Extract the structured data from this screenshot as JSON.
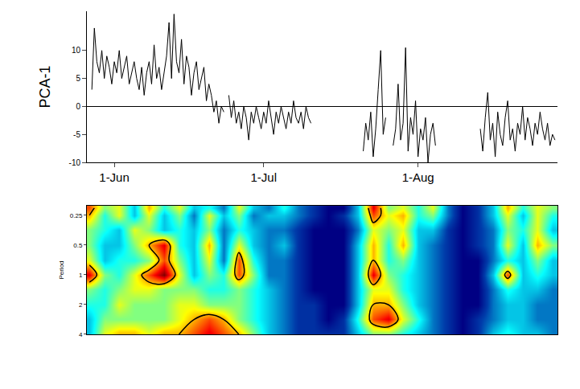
{
  "chart_data": [
    {
      "type": "line",
      "y_label": "PCA-1",
      "x": [
        -4.5,
        -4,
        -3.5,
        -3,
        -2.5,
        -2,
        -1.5,
        -1,
        -0.5,
        0,
        0.5,
        1,
        1.5,
        2,
        2.5,
        3,
        3.5,
        4,
        4.5,
        5,
        5.5,
        6,
        6.5,
        7,
        7.5,
        8,
        8.5,
        9,
        9.5,
        10,
        10.5,
        11,
        11.5,
        12,
        12.5,
        13,
        13.5,
        14,
        14.5,
        15,
        15.5,
        16,
        16.5,
        17,
        17.5,
        18,
        18.5,
        19,
        19.5,
        20,
        20.5,
        21,
        21.5,
        22,
        22.5,
        23,
        23.5,
        24,
        24.5,
        25,
        25.5,
        26,
        26.5,
        27,
        27.5,
        28,
        28.5,
        29,
        29.5,
        30,
        30.5,
        31,
        31.5,
        32,
        32.5,
        33,
        33.5,
        34,
        34.5,
        35,
        35.5,
        36,
        36.5,
        37,
        37.5,
        38,
        38.5,
        39,
        39.5,
        45,
        50,
        50.5,
        51,
        51.5,
        52,
        52.5,
        53,
        53.5,
        54,
        54.5,
        55,
        56,
        56.5,
        57,
        57.5,
        58,
        58.5,
        59,
        59.5,
        60,
        60.5,
        61,
        61.5,
        62,
        62.5,
        63,
        63.5,
        64,
        64.5,
        69,
        73.5,
        74,
        74.5,
        75,
        75.5,
        76,
        76.5,
        77,
        77.5,
        78,
        78.5,
        79,
        79.5,
        80,
        80.5,
        81,
        81.5,
        82,
        82.5,
        83,
        83.5,
        84,
        84.5,
        85,
        85.5,
        86,
        86.5,
        87,
        87.5,
        88,
        88.5
      ],
      "values": [
        3,
        14,
        8,
        6,
        10,
        5,
        9,
        7,
        4,
        8,
        6,
        10,
        5,
        7,
        9,
        4,
        6,
        8,
        5,
        3,
        7,
        2,
        6,
        8,
        4,
        11,
        5,
        7,
        3,
        6,
        9,
        15,
        5,
        16.5,
        8,
        6,
        12,
        4,
        9,
        7,
        2,
        6,
        8,
        3,
        5,
        7,
        1,
        4,
        2,
        -1,
        1,
        -3,
        0,
        -1,
        null,
        2,
        -2,
        1,
        -3,
        -1,
        -4,
        0,
        -2,
        -6,
        -1,
        -3,
        0,
        -2,
        -4,
        -1,
        -3,
        1,
        -2,
        -5,
        -1,
        -3,
        0,
        -2,
        -4,
        -1,
        -3,
        1,
        -2,
        -3,
        -1,
        -4,
        0,
        -2,
        -3,
        null,
        -8,
        -3,
        -6,
        -1,
        -9,
        -4,
        3,
        10,
        -5,
        -2,
        null,
        -7,
        -4,
        4,
        -6,
        -3,
        10.5,
        -8,
        -2,
        -5,
        1,
        -9,
        -4,
        -6,
        -2,
        -10,
        -5,
        -3,
        -7,
        null,
        -4,
        -8,
        -2,
        2.5,
        -6,
        -3,
        -9,
        -1,
        -5,
        -7,
        -2,
        1,
        -6,
        -4,
        -8,
        -3,
        -5,
        0,
        -6,
        -2,
        -4,
        -7,
        -3,
        -5,
        -1,
        -4,
        -6,
        -3,
        -7,
        -5,
        -6
      ],
      "color": "#000000",
      "xlim": [
        -5.5,
        89
      ],
      "xticks": [
        {
          "value": 0,
          "label": "1-Jun"
        },
        {
          "value": 30,
          "label": "1-Jul"
        },
        {
          "value": 61,
          "label": "1-Aug"
        }
      ],
      "ylim": [
        -10,
        17
      ],
      "yticks": [
        -10,
        -5,
        0,
        5,
        10
      ],
      "grid": false
    },
    {
      "type": "heatmap",
      "y_label": "Period",
      "log": "y",
      "x": [
        -5,
        -2,
        1,
        4,
        7,
        10,
        13,
        16,
        19,
        22,
        25,
        28,
        31,
        34,
        37,
        40,
        43,
        46,
        49,
        52,
        55,
        58,
        61,
        64,
        67,
        70,
        73,
        76,
        79,
        82,
        85,
        88
      ],
      "y": [
        0.21,
        0.25,
        0.35,
        0.5,
        0.71,
        1,
        1.41,
        2,
        2.83,
        4
      ],
      "z": [
        [
          8,
          5,
          6,
          3,
          7,
          4,
          6,
          3,
          4,
          2,
          6,
          3,
          2,
          4,
          2,
          1,
          0,
          0,
          3,
          9,
          5,
          6,
          4,
          6,
          2,
          0,
          1,
          3,
          7,
          4,
          6,
          5
        ],
        [
          7,
          4,
          6,
          3,
          6,
          3,
          5,
          2,
          6,
          3,
          5,
          2,
          3,
          3,
          2,
          1,
          0,
          1,
          3,
          8,
          6,
          7,
          4,
          5,
          2,
          0,
          1,
          3,
          6,
          3,
          6,
          4
        ],
        [
          5,
          4,
          3,
          6,
          5,
          3,
          4,
          3,
          5,
          2,
          4,
          3,
          2,
          2,
          1,
          0,
          0,
          0,
          2,
          6,
          5,
          6,
          3,
          3,
          1,
          0,
          1,
          2,
          5,
          4,
          6,
          3
        ],
        [
          5,
          3,
          3,
          5,
          7,
          9,
          4,
          3,
          7,
          2,
          6,
          3,
          2,
          3,
          1,
          0,
          0,
          0,
          3,
          7,
          4,
          7,
          3,
          2,
          1,
          0,
          1,
          2,
          6,
          3,
          7,
          5
        ],
        [
          6,
          3,
          4,
          4,
          5,
          8,
          5,
          3,
          6,
          2,
          8,
          4,
          2,
          2,
          1,
          0,
          0,
          0,
          3,
          7,
          4,
          5,
          3,
          2,
          1,
          0,
          0,
          2,
          4,
          3,
          5,
          3
        ],
        [
          9,
          5,
          4,
          6,
          8,
          10,
          6,
          3,
          5,
          4,
          8,
          5,
          2,
          2,
          1,
          0,
          0,
          0,
          3,
          9,
          5,
          4,
          3,
          2,
          1,
          0,
          0,
          3,
          8,
          3,
          4,
          3
        ],
        [
          5,
          4,
          5,
          6,
          6,
          5,
          5,
          5,
          4,
          4,
          5,
          4,
          3,
          2,
          1,
          0,
          0,
          0,
          3,
          6,
          6,
          4,
          3,
          2,
          1,
          0,
          0,
          2,
          4,
          3,
          3,
          2
        ],
        [
          4,
          4,
          6,
          5,
          5,
          5,
          6,
          6,
          5,
          5,
          5,
          4,
          3,
          2,
          1,
          1,
          0,
          0,
          3,
          7,
          7,
          5,
          3,
          2,
          1,
          0,
          0,
          2,
          3,
          3,
          2,
          2
        ],
        [
          3,
          5,
          5,
          5,
          5,
          5,
          6,
          7,
          8,
          7,
          5,
          4,
          3,
          2,
          1,
          1,
          0,
          1,
          4,
          8,
          9,
          6,
          4,
          2,
          1,
          0,
          1,
          2,
          3,
          3,
          2,
          2
        ],
        [
          3,
          6,
          7,
          7,
          6,
          7,
          7,
          8,
          9,
          8,
          7,
          5,
          3,
          2,
          1,
          1,
          1,
          1,
          3,
          5,
          5,
          4,
          3,
          2,
          1,
          0,
          1,
          3,
          4,
          3,
          3,
          2
        ]
      ],
      "zlim": [
        0,
        10
      ],
      "significance": 7,
      "xlim": [
        -5.5,
        89
      ],
      "ylim": [
        4,
        0.2
      ],
      "yticks": [
        0.25,
        0.5,
        1,
        2,
        4
      ],
      "tick_labels": "y",
      "grid": false
    }
  ]
}
